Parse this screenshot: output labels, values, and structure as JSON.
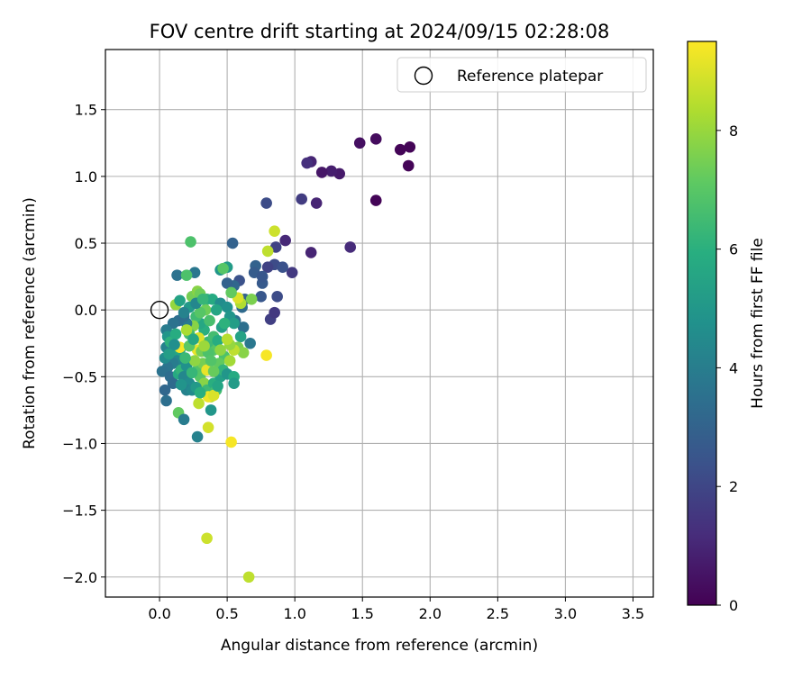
{
  "chart_data": {
    "type": "scatter",
    "title": "FOV centre drift starting at 2024/09/15 02:28:08",
    "xlabel": "Angular distance from reference (arcmin)",
    "ylabel": "Rotation from reference (arcmin)",
    "xlim": [
      -0.4,
      3.65
    ],
    "ylim": [
      -2.15,
      1.95
    ],
    "xticks": [
      0.0,
      0.5,
      1.0,
      1.5,
      2.0,
      2.5,
      3.0,
      3.5
    ],
    "xtick_labels": [
      "0.0",
      "0.5",
      "1.0",
      "1.5",
      "2.0",
      "2.5",
      "3.0",
      "3.5"
    ],
    "yticks": [
      -2.0,
      -1.5,
      -1.0,
      -0.5,
      0.0,
      0.5,
      1.0,
      1.5
    ],
    "ytick_labels": [
      "−2.0",
      "−1.5",
      "−1.0",
      "−0.5",
      "0.0",
      "0.5",
      "1.0",
      "1.5"
    ],
    "grid": true,
    "legend": {
      "position": "top-right",
      "entries": [
        "Reference platepar"
      ]
    },
    "reference_point": {
      "x": 0.0,
      "y": 0.0
    },
    "colorbar": {
      "label": "Hours from first FF file",
      "colormap": "viridis",
      "range": [
        0,
        9.5
      ],
      "ticks": [
        0,
        2,
        4,
        6,
        8
      ],
      "tick_labels": [
        "0",
        "2",
        "4",
        "6",
        "8"
      ]
    },
    "points": [
      {
        "x": 1.85,
        "y": 1.22,
        "c": 0.1
      },
      {
        "x": 1.84,
        "y": 1.08,
        "c": 0.1
      },
      {
        "x": 1.78,
        "y": 1.2,
        "c": 0.1
      },
      {
        "x": 1.6,
        "y": 1.28,
        "c": 0.3
      },
      {
        "x": 1.6,
        "y": 0.82,
        "c": 0.1
      },
      {
        "x": 1.48,
        "y": 1.25,
        "c": 0.4
      },
      {
        "x": 1.33,
        "y": 1.02,
        "c": 0.7
      },
      {
        "x": 1.27,
        "y": 1.04,
        "c": 0.8
      },
      {
        "x": 1.2,
        "y": 1.03,
        "c": 0.6
      },
      {
        "x": 1.12,
        "y": 1.11,
        "c": 1.0
      },
      {
        "x": 1.09,
        "y": 1.1,
        "c": 1.3
      },
      {
        "x": 1.05,
        "y": 0.83,
        "c": 1.7
      },
      {
        "x": 1.16,
        "y": 0.8,
        "c": 1.0
      },
      {
        "x": 1.41,
        "y": 0.47,
        "c": 1.2
      },
      {
        "x": 1.12,
        "y": 0.43,
        "c": 1.0
      },
      {
        "x": 0.98,
        "y": 0.28,
        "c": 1.6
      },
      {
        "x": 0.93,
        "y": 0.52,
        "c": 1.1
      },
      {
        "x": 0.79,
        "y": 0.8,
        "c": 2.2
      },
      {
        "x": 0.86,
        "y": 0.47,
        "c": 1.9
      },
      {
        "x": 0.85,
        "y": 0.34,
        "c": 2.2
      },
      {
        "x": 0.8,
        "y": 0.32,
        "c": 1.9
      },
      {
        "x": 0.91,
        "y": 0.32,
        "c": 2.4
      },
      {
        "x": 0.87,
        "y": 0.1,
        "c": 2.2
      },
      {
        "x": 0.82,
        "y": -0.07,
        "c": 1.8
      },
      {
        "x": 0.85,
        "y": -0.02,
        "c": 1.6
      },
      {
        "x": 0.76,
        "y": 0.2,
        "c": 2.7
      },
      {
        "x": 0.71,
        "y": 0.33,
        "c": 3.0
      },
      {
        "x": 0.7,
        "y": 0.28,
        "c": 2.8
      },
      {
        "x": 0.76,
        "y": 0.25,
        "c": 2.6
      },
      {
        "x": 0.75,
        "y": 0.1,
        "c": 2.6
      },
      {
        "x": 0.54,
        "y": 0.5,
        "c": 3.0
      },
      {
        "x": 0.59,
        "y": 0.22,
        "c": 2.4
      },
      {
        "x": 0.55,
        "y": 0.18,
        "c": 3.2
      },
      {
        "x": 0.5,
        "y": 0.2,
        "c": 3.0
      },
      {
        "x": 0.63,
        "y": 0.08,
        "c": 3.0
      },
      {
        "x": 0.61,
        "y": 0.02,
        "c": 3.3
      },
      {
        "x": 0.62,
        "y": -0.13,
        "c": 3.5
      },
      {
        "x": 0.56,
        "y": -0.08,
        "c": 3.6
      },
      {
        "x": 0.67,
        "y": -0.25,
        "c": 3.8
      },
      {
        "x": 0.45,
        "y": 0.3,
        "c": 5.0
      },
      {
        "x": 0.5,
        "y": 0.32,
        "c": 5.2
      },
      {
        "x": 0.47,
        "y": 0.31,
        "c": 7.0
      },
      {
        "x": 0.26,
        "y": 0.28,
        "c": 3.8
      },
      {
        "x": 0.13,
        "y": 0.26,
        "c": 3.6
      },
      {
        "x": 0.2,
        "y": 0.26,
        "c": 6.8
      },
      {
        "x": 0.23,
        "y": 0.51,
        "c": 6.8
      },
      {
        "x": 0.8,
        "y": 0.44,
        "c": 8.6
      },
      {
        "x": 0.85,
        "y": 0.59,
        "c": 8.8
      },
      {
        "x": 0.6,
        "y": 0.05,
        "c": 8.4
      },
      {
        "x": 0.68,
        "y": 0.08,
        "c": 7.6
      },
      {
        "x": 0.58,
        "y": 0.09,
        "c": 9.0
      },
      {
        "x": 0.53,
        "y": 0.13,
        "c": 7.2
      },
      {
        "x": 0.12,
        "y": 0.04,
        "c": 8.0
      },
      {
        "x": 0.15,
        "y": 0.07,
        "c": 5.5
      },
      {
        "x": 0.24,
        "y": 0.1,
        "c": 7.5
      },
      {
        "x": 0.28,
        "y": 0.14,
        "c": 7.8
      },
      {
        "x": 0.3,
        "y": 0.12,
        "c": 7.4
      },
      {
        "x": 0.35,
        "y": 0.08,
        "c": 6.2
      },
      {
        "x": 0.39,
        "y": 0.08,
        "c": 5.8
      },
      {
        "x": 0.45,
        "y": 0.05,
        "c": 4.6
      },
      {
        "x": 0.5,
        "y": 0.02,
        "c": 4.8
      },
      {
        "x": 0.52,
        "y": -0.05,
        "c": 5.0
      },
      {
        "x": 0.55,
        "y": -0.1,
        "c": 5.3
      },
      {
        "x": 0.6,
        "y": -0.2,
        "c": 5.5
      },
      {
        "x": 0.58,
        "y": -0.28,
        "c": 7.6
      },
      {
        "x": 0.62,
        "y": -0.32,
        "c": 7.8
      },
      {
        "x": 0.55,
        "y": -0.3,
        "c": 8.6
      },
      {
        "x": 0.52,
        "y": -0.26,
        "c": 8.0
      },
      {
        "x": 0.48,
        "y": -0.35,
        "c": 6.8
      },
      {
        "x": 0.44,
        "y": -0.4,
        "c": 7.2
      },
      {
        "x": 0.4,
        "y": -0.3,
        "c": 7.0
      },
      {
        "x": 0.36,
        "y": -0.24,
        "c": 6.4
      },
      {
        "x": 0.33,
        "y": -0.15,
        "c": 6.0
      },
      {
        "x": 0.3,
        "y": -0.1,
        "c": 5.7
      },
      {
        "x": 0.27,
        "y": -0.05,
        "c": 6.5
      },
      {
        "x": 0.25,
        "y": -0.12,
        "c": 7.8
      },
      {
        "x": 0.22,
        "y": -0.18,
        "c": 6.6
      },
      {
        "x": 0.2,
        "y": -0.1,
        "c": 3.9
      },
      {
        "x": 0.18,
        "y": -0.05,
        "c": 3.5
      },
      {
        "x": 0.14,
        "y": -0.08,
        "c": 3.4
      },
      {
        "x": 0.1,
        "y": -0.1,
        "c": 3.6
      },
      {
        "x": 0.05,
        "y": -0.15,
        "c": 4.0
      },
      {
        "x": 0.06,
        "y": -0.2,
        "c": 5.0
      },
      {
        "x": 0.05,
        "y": -0.28,
        "c": 4.2
      },
      {
        "x": 0.1,
        "y": -0.32,
        "c": 5.5
      },
      {
        "x": 0.15,
        "y": -0.3,
        "c": 5.6
      },
      {
        "x": 0.13,
        "y": -0.38,
        "c": 4.4
      },
      {
        "x": 0.1,
        "y": -0.4,
        "c": 4.0
      },
      {
        "x": 0.06,
        "y": -0.43,
        "c": 3.7
      },
      {
        "x": 0.02,
        "y": -0.46,
        "c": 3.6
      },
      {
        "x": 0.08,
        "y": -0.5,
        "c": 3.4
      },
      {
        "x": 0.1,
        "y": -0.55,
        "c": 3.3
      },
      {
        "x": 0.04,
        "y": -0.6,
        "c": 3.2
      },
      {
        "x": 0.05,
        "y": -0.68,
        "c": 3.5
      },
      {
        "x": 0.14,
        "y": -0.48,
        "c": 5.8
      },
      {
        "x": 0.16,
        "y": -0.45,
        "c": 6.2
      },
      {
        "x": 0.2,
        "y": -0.42,
        "c": 4.8
      },
      {
        "x": 0.18,
        "y": -0.5,
        "c": 4.4
      },
      {
        "x": 0.22,
        "y": -0.55,
        "c": 4.6
      },
      {
        "x": 0.2,
        "y": -0.6,
        "c": 4.2
      },
      {
        "x": 0.24,
        "y": -0.6,
        "c": 4.5
      },
      {
        "x": 0.28,
        "y": -0.45,
        "c": 6.9
      },
      {
        "x": 0.3,
        "y": -0.5,
        "c": 7.0
      },
      {
        "x": 0.32,
        "y": -0.4,
        "c": 7.5
      },
      {
        "x": 0.35,
        "y": -0.45,
        "c": 9.2
      },
      {
        "x": 0.33,
        "y": -0.55,
        "c": 7.8
      },
      {
        "x": 0.35,
        "y": -0.6,
        "c": 6.4
      },
      {
        "x": 0.38,
        "y": -0.65,
        "c": 8.4
      },
      {
        "x": 0.4,
        "y": -0.55,
        "c": 6.0
      },
      {
        "x": 0.42,
        "y": -0.6,
        "c": 6.6
      },
      {
        "x": 0.45,
        "y": -0.5,
        "c": 5.4
      },
      {
        "x": 0.47,
        "y": -0.45,
        "c": 6.2
      },
      {
        "x": 0.5,
        "y": -0.48,
        "c": 5.0
      },
      {
        "x": 0.55,
        "y": -0.5,
        "c": 5.8
      },
      {
        "x": 0.55,
        "y": -0.55,
        "c": 5.2
      },
      {
        "x": 0.14,
        "y": -0.77,
        "c": 7.2
      },
      {
        "x": 0.18,
        "y": -0.82,
        "c": 4.0
      },
      {
        "x": 0.36,
        "y": -0.65,
        "c": 9.3
      },
      {
        "x": 0.4,
        "y": -0.64,
        "c": 9.0
      },
      {
        "x": 0.38,
        "y": -0.75,
        "c": 5.0
      },
      {
        "x": 0.29,
        "y": -0.7,
        "c": 8.6
      },
      {
        "x": 0.36,
        "y": -0.88,
        "c": 8.9
      },
      {
        "x": 0.28,
        "y": -0.95,
        "c": 4.2
      },
      {
        "x": 0.53,
        "y": -0.99,
        "c": 9.4
      },
      {
        "x": 0.79,
        "y": -0.34,
        "c": 9.4
      },
      {
        "x": 0.35,
        "y": -1.71,
        "c": 8.8
      },
      {
        "x": 0.66,
        "y": -2.0,
        "c": 8.6
      },
      {
        "x": 0.15,
        "y": -0.28,
        "c": 9.4
      },
      {
        "x": 0.28,
        "y": -0.3,
        "c": 9.2
      },
      {
        "x": 0.29,
        "y": -0.21,
        "c": 9.0
      },
      {
        "x": 0.26,
        "y": -0.38,
        "c": 7.9
      },
      {
        "x": 0.31,
        "y": -0.31,
        "c": 7.5
      },
      {
        "x": 0.36,
        "y": -0.32,
        "c": 6.8
      },
      {
        "x": 0.38,
        "y": -0.38,
        "c": 6.9
      },
      {
        "x": 0.4,
        "y": -0.2,
        "c": 6.6
      },
      {
        "x": 0.43,
        "y": -0.23,
        "c": 5.9
      },
      {
        "x": 0.46,
        "y": -0.13,
        "c": 5.4
      },
      {
        "x": 0.34,
        "y": 0.0,
        "c": 7.4
      },
      {
        "x": 0.3,
        "y": -0.02,
        "c": 7.0
      },
      {
        "x": 0.22,
        "y": 0.02,
        "c": 5.1
      },
      {
        "x": 0.27,
        "y": 0.05,
        "c": 4.4
      },
      {
        "x": 0.18,
        "y": -0.02,
        "c": 4.2
      },
      {
        "x": 0.08,
        "y": -0.24,
        "c": 6.1
      },
      {
        "x": 0.12,
        "y": -0.18,
        "c": 5.9
      },
      {
        "x": 0.04,
        "y": -0.36,
        "c": 4.6
      },
      {
        "x": 0.07,
        "y": -0.33,
        "c": 5.3
      },
      {
        "x": 0.22,
        "y": -0.27,
        "c": 7.1
      },
      {
        "x": 0.24,
        "y": -0.47,
        "c": 6.3
      },
      {
        "x": 0.16,
        "y": -0.56,
        "c": 4.9
      },
      {
        "x": 0.27,
        "y": -0.58,
        "c": 5.1
      },
      {
        "x": 0.3,
        "y": -0.62,
        "c": 6.0
      },
      {
        "x": 0.45,
        "y": -0.3,
        "c": 7.9
      },
      {
        "x": 0.5,
        "y": -0.22,
        "c": 8.5
      },
      {
        "x": 0.48,
        "y": -0.1,
        "c": 6.1
      },
      {
        "x": 0.42,
        "y": 0.0,
        "c": 5.6
      },
      {
        "x": 0.37,
        "y": -0.08,
        "c": 6.7
      },
      {
        "x": 0.32,
        "y": 0.08,
        "c": 6.3
      },
      {
        "x": 0.4,
        "y": -0.46,
        "c": 7.3
      },
      {
        "x": 0.52,
        "y": -0.38,
        "c": 8.2
      },
      {
        "x": 0.25,
        "y": -0.22,
        "c": 5.7
      },
      {
        "x": 0.19,
        "y": -0.36,
        "c": 6.4
      },
      {
        "x": 0.33,
        "y": -0.27,
        "c": 8.1
      },
      {
        "x": 0.43,
        "y": -0.57,
        "c": 5.6
      },
      {
        "x": 0.2,
        "y": -0.15,
        "c": 8.3
      },
      {
        "x": 0.11,
        "y": -0.26,
        "c": 4.7
      }
    ]
  }
}
